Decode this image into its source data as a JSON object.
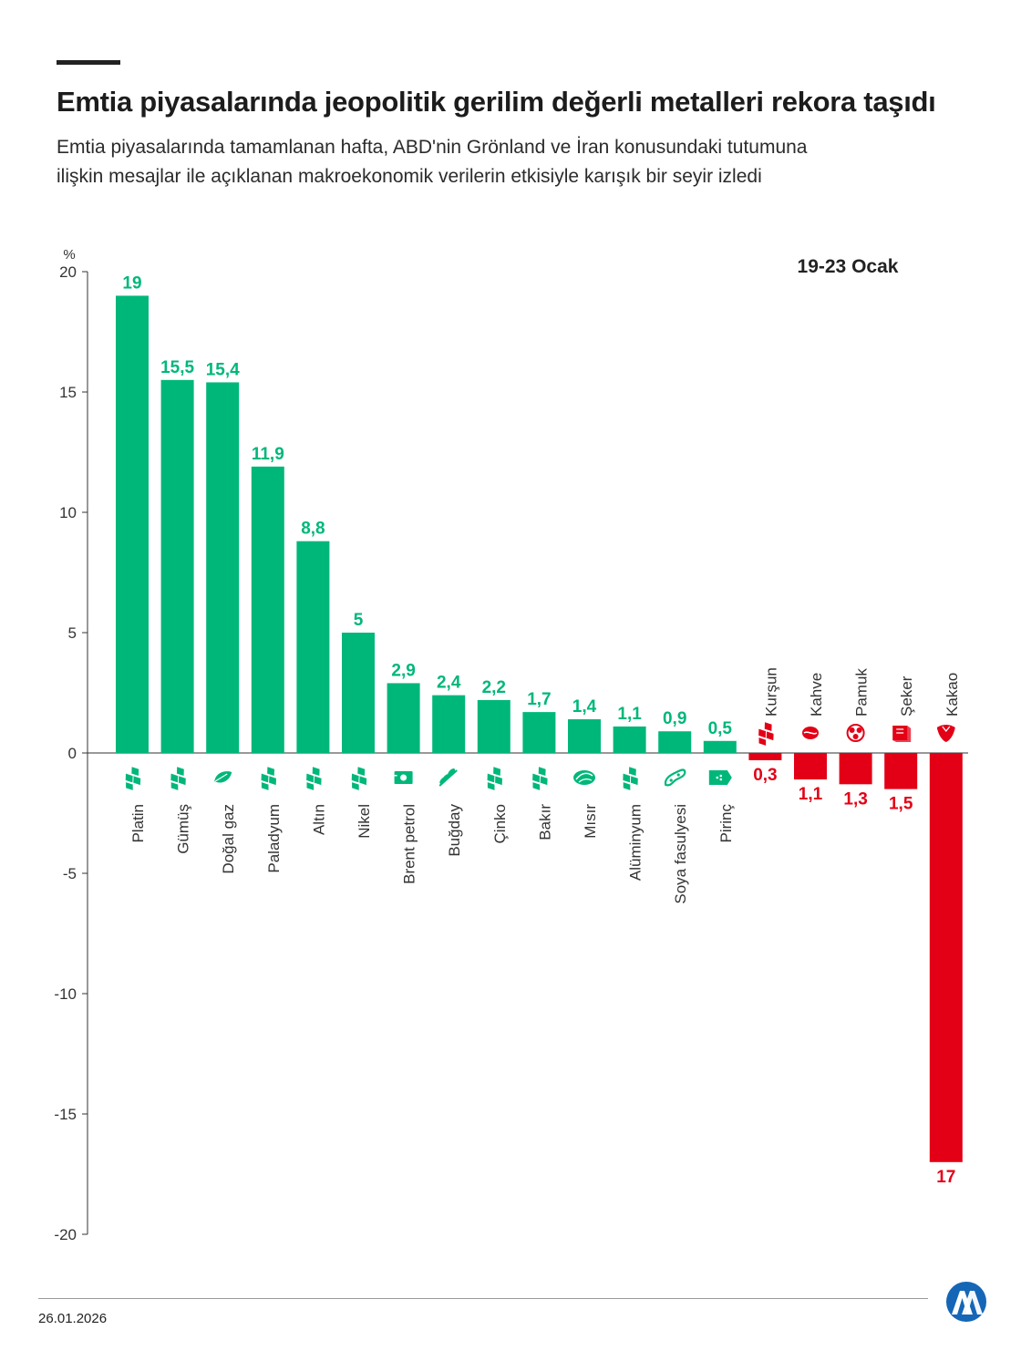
{
  "header": {
    "title": "Emtia piyasalarında jeopolitik gerilim değerli metalleri rekora taşıdı",
    "subtitle_line1": "Emtia piyasalarında tamamlanan hafta, ABD'nin Grönland ve İran konusundaki tutumuna",
    "subtitle_line2": "ilişkin mesajlar ile açıklanan makroekonomik verilerin etkisiyle karışık bir seyir izledi"
  },
  "footer": {
    "date": "26.01.2026",
    "logo_icon": "aa-logo-icon"
  },
  "colors": {
    "positive": "#00b77a",
    "negative": "#e30016",
    "axis": "#333333",
    "logo": "#1566b7"
  },
  "chart_data": {
    "type": "bar",
    "period_label": "19-23 Ocak",
    "ylabel": "%",
    "ylim": [
      -20,
      20
    ],
    "yticks": [
      20,
      15,
      10,
      5,
      0,
      -5,
      -10,
      -15,
      -20
    ],
    "categories": [
      "Platin",
      "Gümüş",
      "Doğal gaz",
      "Paladyum",
      "Altın",
      "Nikel",
      "Brent petrol",
      "Buğday",
      "Çinko",
      "Bakır",
      "Mısır",
      "Alüminyum",
      "Soya fasulyesi",
      "Pirinç",
      "Kurşun",
      "Kahve",
      "Pamuk",
      "Şeker",
      "Kakao"
    ],
    "values": [
      19,
      15.5,
      15.4,
      11.9,
      8.8,
      5,
      2.9,
      2.4,
      2.2,
      1.7,
      1.4,
      1.1,
      0.9,
      0.5,
      -0.3,
      -1.1,
      -1.3,
      -1.5,
      -17
    ],
    "value_labels": [
      "19",
      "15,5",
      "15,4",
      "11,9",
      "8,8",
      "5",
      "2,9",
      "2,4",
      "2,2",
      "1,7",
      "1,4",
      "1,1",
      "0,9",
      "0,5",
      "0,3",
      "1,1",
      "1,3",
      "1,5",
      "17"
    ],
    "icons": [
      "metal-icon",
      "metal-icon",
      "leaf-icon",
      "metal-icon",
      "metal-icon",
      "metal-icon",
      "oil-barrel-icon",
      "wheat-icon",
      "metal-icon",
      "metal-icon",
      "corn-icon",
      "metal-icon",
      "soybean-icon",
      "rice-icon",
      "metal-icon",
      "coffee-bean-icon",
      "cotton-icon",
      "sugar-icon",
      "cocoa-icon"
    ]
  }
}
